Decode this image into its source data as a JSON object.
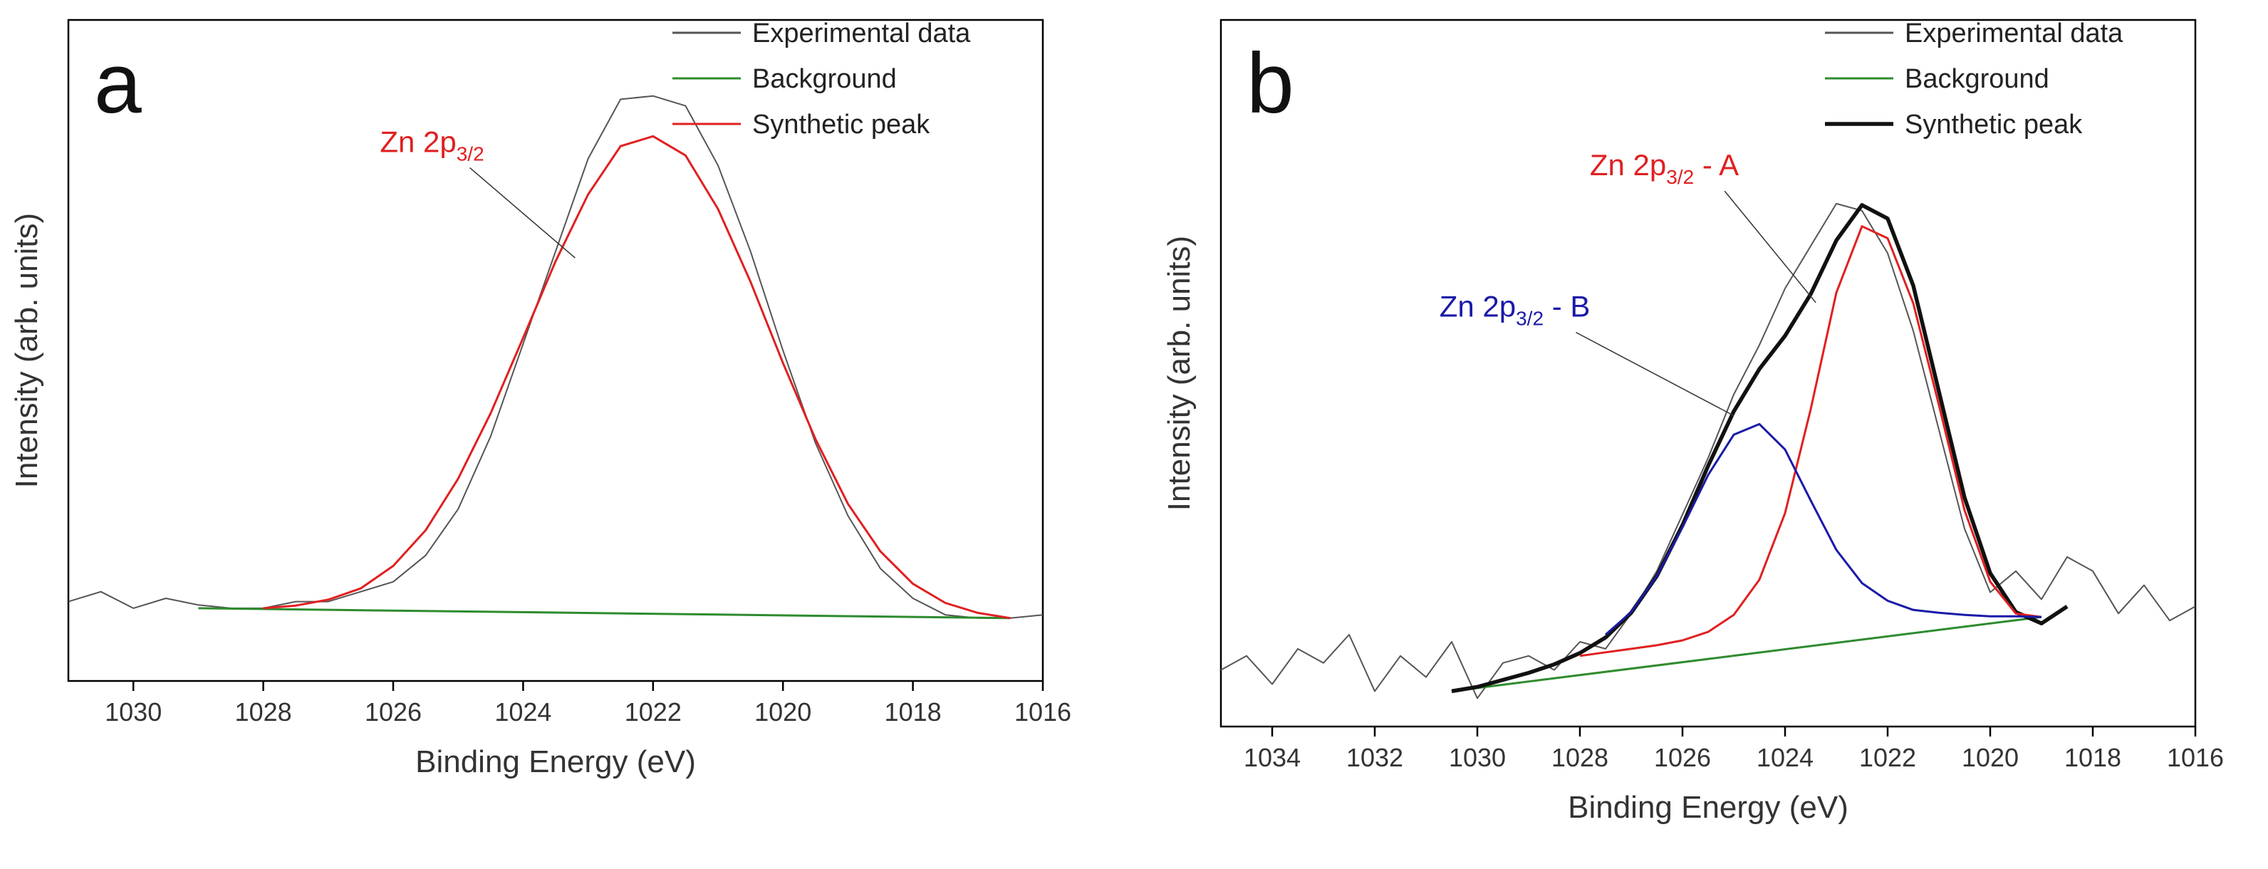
{
  "chart_data": [
    {
      "type": "line",
      "panel_label": "a",
      "xlabel": "Binding Energy (eV)",
      "ylabel": "Intensity (arb. units)",
      "xlim": [
        1031,
        1016
      ],
      "ylim": [
        0,
        100
      ],
      "x_reversed": true,
      "xticks": [
        1030,
        1028,
        1026,
        1024,
        1022,
        1020,
        1018,
        1016
      ],
      "xtick_labels": [
        "1030",
        "1028",
        "1026",
        "1024",
        "1022",
        "1020",
        "1018",
        "1016"
      ],
      "legend": {
        "placement": "top-right",
        "entries": [
          {
            "label": "Experimental data",
            "color": "#555555"
          },
          {
            "label": "Background",
            "color": "#2e8b2e"
          },
          {
            "label": "Synthetic peak",
            "color": "#e02020"
          }
        ]
      },
      "series": [
        {
          "name": "Experimental data",
          "color": "#555555",
          "x": [
            1031,
            1030.5,
            1030,
            1029.5,
            1029,
            1028.5,
            1028,
            1027.5,
            1027,
            1026.5,
            1026,
            1025.5,
            1025,
            1024.5,
            1024,
            1023.5,
            1023,
            1022.5,
            1022,
            1021.5,
            1021,
            1020.5,
            1020,
            1019.5,
            1019,
            1018.5,
            1018,
            1017.5,
            1017,
            1016.5,
            1016
          ],
          "y": [
            12.0,
            13.5,
            11.0,
            12.5,
            11.5,
            11.0,
            11.0,
            12.0,
            12.0,
            13.5,
            15.0,
            19.0,
            26.0,
            37.0,
            51.0,
            65.0,
            79.0,
            88.0,
            88.5,
            87.0,
            78.0,
            65.0,
            50.0,
            36.0,
            25.0,
            17.0,
            12.5,
            10.0,
            9.5,
            9.5,
            10.0
          ]
        },
        {
          "name": "Background",
          "color": "#2e8b2e",
          "x": [
            1029,
            1016.5
          ],
          "y": [
            11.0,
            9.5
          ]
        },
        {
          "name": "Synthetic peak",
          "color": "#e02020",
          "x": [
            1028,
            1027.5,
            1027,
            1026.5,
            1026,
            1025.5,
            1025,
            1024.5,
            1024,
            1023.5,
            1023,
            1022.5,
            1022,
            1021.5,
            1021,
            1020.5,
            1020,
            1019.5,
            1019,
            1018.5,
            1018,
            1017.5,
            1017,
            1016.5
          ],
          "y": [
            11.0,
            11.4,
            12.3,
            14.0,
            17.4,
            22.8,
            30.6,
            40.5,
            51.9,
            63.5,
            73.6,
            80.9,
            82.4,
            79.5,
            71.4,
            60.4,
            48.1,
            36.6,
            26.8,
            19.6,
            14.7,
            11.8,
            10.3,
            9.5
          ]
        }
      ],
      "annotations": [
        {
          "text": "Zn 2p",
          "sub": "3/2",
          "color": "#e02020",
          "x": 1024.6,
          "y": 80.0,
          "target_x": 1023.2,
          "target_y": 64.0
        }
      ]
    },
    {
      "type": "line",
      "panel_label": "b",
      "xlabel": "Binding Energy (eV)",
      "ylabel": "Intensity (arb. units)",
      "xlim": [
        1035,
        1016
      ],
      "ylim": [
        0,
        100
      ],
      "x_reversed": true,
      "xticks": [
        1034,
        1032,
        1030,
        1028,
        1026,
        1024,
        1022,
        1020,
        1018,
        1016
      ],
      "xtick_labels": [
        "1034",
        "1032",
        "1030",
        "1028",
        "1026",
        "1024",
        "1022",
        "1020",
        "1018",
        "1016"
      ],
      "legend": {
        "placement": "top-right",
        "entries": [
          {
            "label": "Experimental data",
            "color": "#555555"
          },
          {
            "label": "Background",
            "color": "#2e8b2e"
          },
          {
            "label": "Synthetic peak",
            "color": "#111111"
          }
        ]
      },
      "series": [
        {
          "name": "Experimental data",
          "color": "#555555",
          "x": [
            1035,
            1034.5,
            1034,
            1033.5,
            1033,
            1032.5,
            1032,
            1031.5,
            1031,
            1030.5,
            1030,
            1029.5,
            1029,
            1028.5,
            1028,
            1027.5,
            1027,
            1026.5,
            1026,
            1025.5,
            1025,
            1024.5,
            1024,
            1023.5,
            1023,
            1022.5,
            1022,
            1021.5,
            1021,
            1020.5,
            1020,
            1019.5,
            1019,
            1018.5,
            1018,
            1017.5,
            1017,
            1016.5,
            1016
          ],
          "y": [
            8.0,
            10.0,
            6.0,
            11.0,
            9.0,
            13.0,
            5.0,
            10.0,
            7.0,
            12.0,
            4.0,
            9.0,
            10.0,
            8.0,
            12.0,
            11.0,
            16.0,
            22.0,
            30.0,
            38.0,
            47.0,
            54.0,
            62.0,
            68.0,
            74.0,
            73.0,
            67.0,
            56.0,
            42.0,
            28.0,
            19.0,
            22.0,
            18.0,
            24.0,
            22.0,
            16.0,
            20.0,
            15.0,
            17.0
          ]
        },
        {
          "name": "Background",
          "color": "#2e8b2e",
          "x": [
            1030.5,
            1019
          ],
          "y": [
            5.0,
            15.5
          ]
        },
        {
          "name": "Synthetic peak",
          "color": "#111111",
          "x": [
            1030.5,
            1030,
            1029.5,
            1029,
            1028.5,
            1028,
            1027.5,
            1027,
            1026.5,
            1026,
            1025.5,
            1025,
            1024.5,
            1024,
            1023.5,
            1023,
            1022.5,
            1022,
            1021.5,
            1021,
            1020.5,
            1020,
            1019.5,
            1019,
            1018.5
          ],
          "y": [
            5.0,
            5.6,
            6.6,
            7.6,
            8.8,
            10.4,
            12.6,
            16.1,
            21.3,
            28.5,
            36.9,
            44.6,
            50.6,
            55.3,
            61.2,
            68.8,
            73.8,
            71.9,
            62.4,
            47.4,
            32.4,
            21.7,
            16.2,
            14.6,
            17.0
          ]
        },
        {
          "name": "Zn 2p3/2 - A",
          "color": "#e02020",
          "x": [
            1028,
            1027.5,
            1027,
            1026.5,
            1026,
            1025.5,
            1025,
            1024.5,
            1024,
            1023.5,
            1023,
            1022.5,
            1022,
            1021.5,
            1021,
            1020.5,
            1020,
            1019.5,
            1019
          ],
          "y": [
            10.0,
            10.5,
            11.0,
            11.5,
            12.2,
            13.4,
            15.8,
            20.8,
            30.2,
            44.9,
            61.4,
            70.8,
            69.1,
            59.9,
            45.5,
            30.6,
            20.5,
            16.0,
            15.5
          ]
        },
        {
          "name": "Zn 2p3/2 - B",
          "color": "#1a1aa8",
          "x": [
            1027.5,
            1027,
            1026.5,
            1026,
            1025.5,
            1025,
            1024.5,
            1024,
            1023.5,
            1023,
            1022.5,
            1022,
            1021.5,
            1021,
            1020.5,
            1020,
            1019.5,
            1019
          ],
          "y": [
            13.0,
            16.2,
            21.3,
            28.2,
            35.6,
            41.3,
            42.8,
            39.2,
            32.0,
            25.0,
            20.3,
            17.8,
            16.5,
            16.1,
            15.8,
            15.6,
            15.6,
            15.5
          ]
        }
      ],
      "annotations": [
        {
          "text": "Zn 2p",
          "sub": "3/2",
          "suffix": " - A",
          "color": "#e02020",
          "x": 1024.9,
          "y": 78.0,
          "target_x": 1023.4,
          "target_y": 60.0
        },
        {
          "text": "Zn 2p",
          "sub": "3/2",
          "suffix": " - B",
          "color": "#1a1aa8",
          "x": 1027.8,
          "y": 58.0,
          "target_x": 1025.0,
          "target_y": 44.0
        }
      ]
    }
  ]
}
